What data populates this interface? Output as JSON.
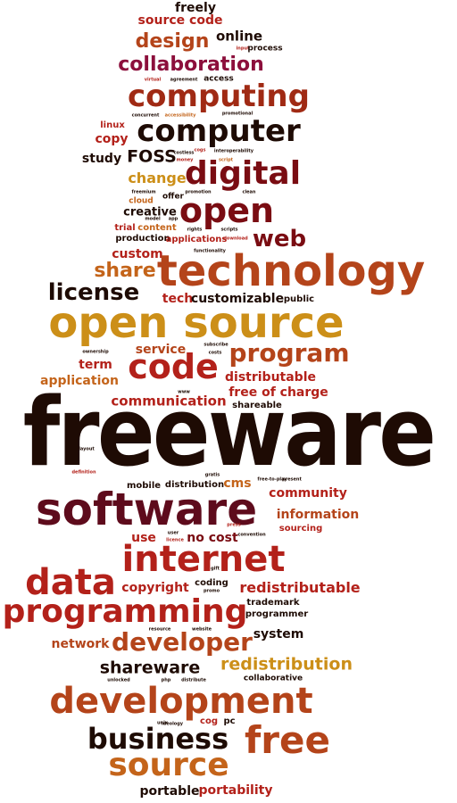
{
  "colors": {
    "black": "#1e0b04",
    "dark_red": "#7a0c12",
    "red": "#b3211a",
    "brown_red": "#a02a14",
    "rust": "#b4441a",
    "orange": "#c4641a",
    "gold": "#cc8f18",
    "maroon": "#5e0b1c",
    "magenta": "#8c0f3c"
  },
  "words": [
    "freely",
    "source code",
    "design",
    "online",
    "input",
    "process",
    "collaboration",
    "virtual",
    "agreement",
    "access",
    "computing",
    "concurrent",
    "accessibility",
    "promotional",
    "linux",
    "copy",
    "computer",
    "study",
    "FOSS",
    "costless",
    "cogs",
    "money",
    "interoperability",
    "script",
    "digital",
    "change",
    "cloud",
    "freemium",
    "offer",
    "promotion",
    "clean",
    "creative",
    "model",
    "app",
    "open",
    "trial",
    "content",
    "rights",
    "scripts",
    "production",
    "applications",
    "download",
    "web",
    "custom",
    "functionality",
    "share",
    "technology",
    "license",
    "tech",
    "customizable",
    "public",
    "open source",
    "ownership",
    "service",
    "subscribe",
    "costs",
    "program",
    "term",
    "code",
    "distributable",
    "application",
    "free of charge",
    "communication",
    "www",
    "shareable",
    "freeware",
    "layout",
    "definition",
    "gratis",
    "mobile",
    "distribution",
    "cms",
    "free-to-play",
    "present",
    "software",
    "community",
    "information",
    "press",
    "use",
    "user",
    "licence",
    "no cost",
    "convention",
    "sourcing",
    "internet",
    "gift",
    "data",
    "copyright",
    "coding",
    "redistributable",
    "promo",
    "trademark",
    "programming",
    "programmer",
    "resource",
    "website",
    "network",
    "developer",
    "system",
    "shareware",
    "redistribution",
    "collaborative",
    "unlocked",
    "php",
    "distribute",
    "development",
    "unix",
    "ideology",
    "cog",
    "pc",
    "business",
    "free",
    "source",
    "portable",
    "portability"
  ]
}
